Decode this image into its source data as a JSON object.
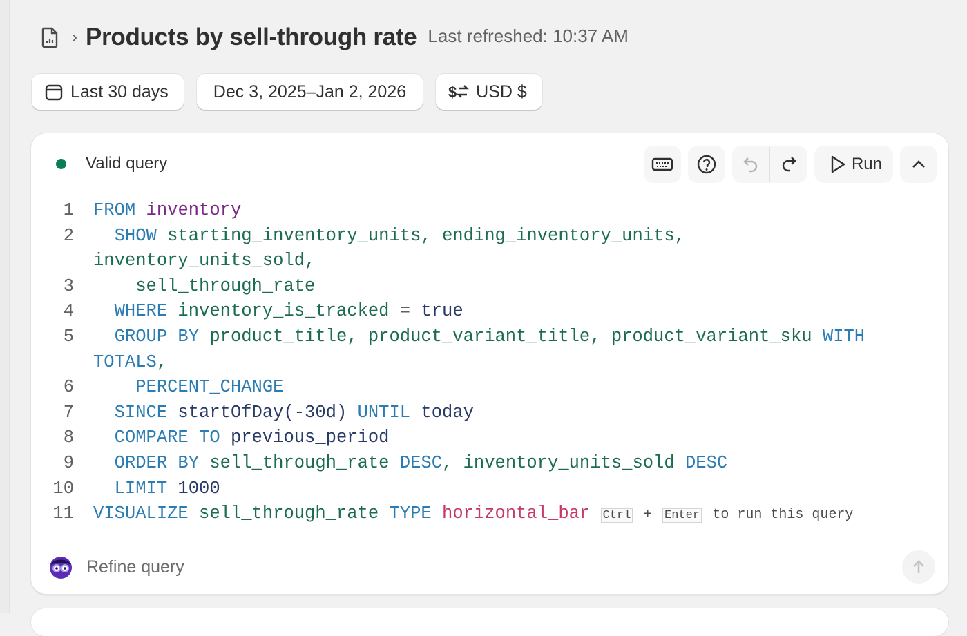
{
  "header": {
    "title": "Products by sell-through rate",
    "last_refreshed": "Last refreshed: 10:37 AM"
  },
  "filters": {
    "date_preset": "Last 30 days",
    "date_range": "Dec 3, 2025–Jan 2, 2026",
    "currency": "USD $"
  },
  "editor": {
    "status": "Valid query",
    "status_color": "#0a7d57",
    "run_label": "Run",
    "lines": [
      {
        "n": "1",
        "tokens": [
          [
            "FROM",
            "k"
          ],
          [
            " ",
            ""
          ],
          [
            "inventory",
            "t"
          ]
        ]
      },
      {
        "n": "2",
        "tokens": [
          [
            "  ",
            ""
          ],
          [
            "SHOW",
            "k"
          ],
          [
            " starting_inventory_units, ending_inventory_units, inventory_units_sold,",
            ""
          ]
        ]
      },
      {
        "n": "3",
        "tokens": [
          [
            "    sell_through_rate",
            ""
          ]
        ]
      },
      {
        "n": "4",
        "tokens": [
          [
            "  ",
            ""
          ],
          [
            "WHERE",
            "k"
          ],
          [
            " inventory_is_tracked ",
            ""
          ],
          [
            "=",
            "o"
          ],
          [
            " ",
            ""
          ],
          [
            "true",
            "v"
          ]
        ]
      },
      {
        "n": "5",
        "tokens": [
          [
            "  ",
            ""
          ],
          [
            "GROUP BY",
            "k"
          ],
          [
            " product_title, product_variant_title, product_variant_sku ",
            ""
          ],
          [
            "WITH TOTALS",
            "k"
          ],
          [
            ",",
            ""
          ]
        ]
      },
      {
        "n": "6",
        "tokens": [
          [
            "    ",
            ""
          ],
          [
            "PERCENT_CHANGE",
            "k"
          ]
        ]
      },
      {
        "n": "7",
        "tokens": [
          [
            "  ",
            ""
          ],
          [
            "SINCE",
            "k"
          ],
          [
            " startOfDay(-30d) ",
            "v"
          ],
          [
            "UNTIL",
            "k"
          ],
          [
            " today",
            "v"
          ]
        ]
      },
      {
        "n": "8",
        "tokens": [
          [
            "  ",
            ""
          ],
          [
            "COMPARE TO",
            "k"
          ],
          [
            " previous_period",
            "v"
          ]
        ]
      },
      {
        "n": "9",
        "tokens": [
          [
            "  ",
            ""
          ],
          [
            "ORDER BY",
            "k"
          ],
          [
            " sell_through_rate ",
            ""
          ],
          [
            "DESC",
            "k"
          ],
          [
            ", inventory_units_sold ",
            ""
          ],
          [
            "DESC",
            "k"
          ]
        ]
      },
      {
        "n": "10",
        "tokens": [
          [
            "  ",
            ""
          ],
          [
            "LIMIT",
            "k"
          ],
          [
            " 1000",
            "v"
          ]
        ]
      },
      {
        "n": "11",
        "tokens": [
          [
            "VISUALIZE",
            "k"
          ],
          [
            " sell_through_rate ",
            ""
          ],
          [
            "TYPE",
            "k"
          ],
          [
            " ",
            ""
          ],
          [
            "horizontal_bar",
            "p"
          ]
        ]
      }
    ],
    "hint": {
      "key1": "Ctrl",
      "plus": "+",
      "key2": "Enter",
      "text": "to run this query"
    }
  },
  "refine": {
    "placeholder": "Refine query"
  }
}
